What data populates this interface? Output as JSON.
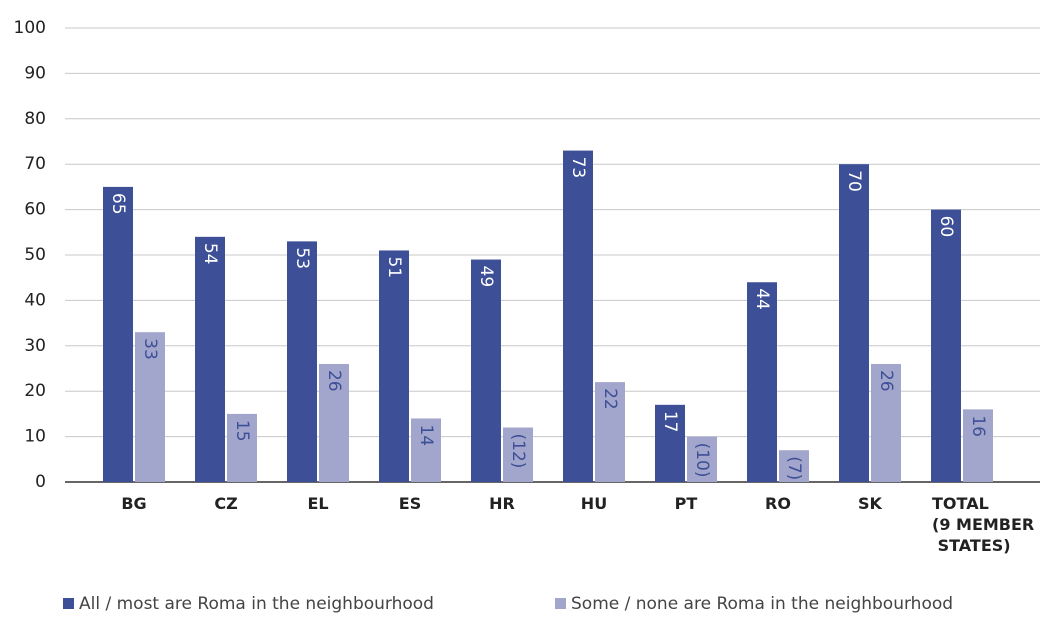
{
  "chart_data": {
    "type": "bar",
    "categories": [
      "BG",
      "CZ",
      "EL",
      "ES",
      "HR",
      "HU",
      "PT",
      "RO",
      "SK",
      "TOTAL (9 MEMBER STATES)"
    ],
    "series": [
      {
        "name": "All / most are Roma in the neighbourhood",
        "color": "#3d4f96",
        "values": [
          65,
          54,
          53,
          51,
          49,
          73,
          17,
          44,
          70,
          60
        ]
      },
      {
        "name": "Some / none are Roma in the neighbourhood",
        "color": "#a3a6cc",
        "values": [
          33,
          15,
          26,
          14,
          12,
          22,
          10,
          7,
          26,
          16
        ],
        "value_labels": [
          "33",
          "15",
          "26",
          "14",
          "(12)",
          "22",
          "(10)",
          "(7)",
          "26",
          "16"
        ]
      }
    ],
    "ylim": [
      0,
      100
    ],
    "yticks": [
      0,
      10,
      20,
      30,
      40,
      50,
      60,
      70,
      80,
      90,
      100
    ],
    "grid": true,
    "legend": "bottom"
  }
}
